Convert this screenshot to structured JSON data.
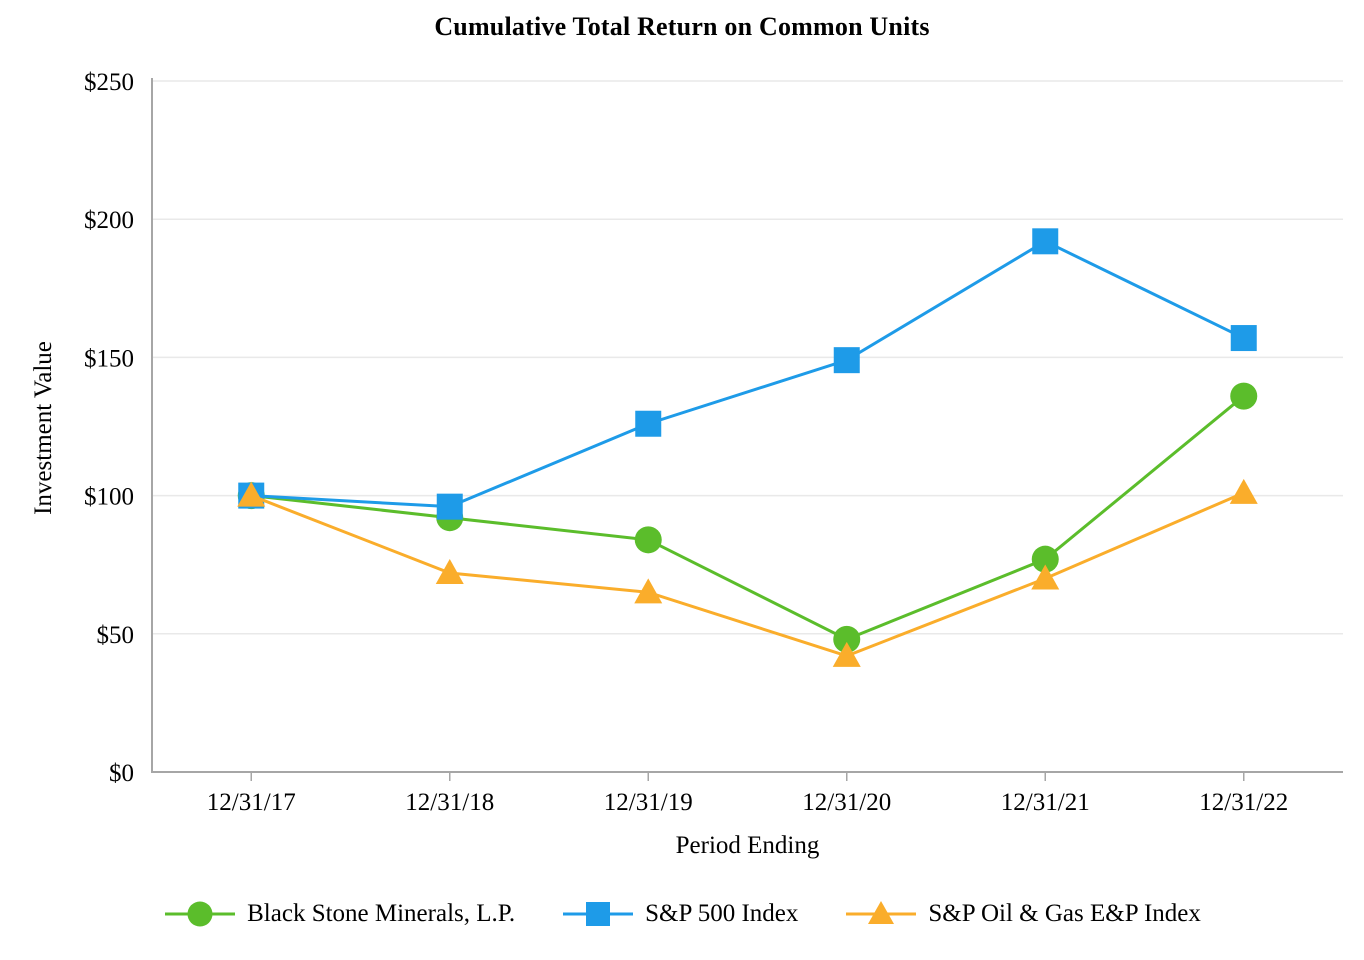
{
  "chart_data": {
    "type": "line",
    "title": "Cumulative Total Return on Common Units",
    "xlabel": "Period Ending",
    "ylabel": "Investment Value",
    "categories": [
      "12/31/17",
      "12/31/18",
      "12/31/19",
      "12/31/20",
      "12/31/21",
      "12/31/22"
    ],
    "series": [
      {
        "name": "Black Stone Minerals, L.P.",
        "marker": "circle",
        "color": "#5BBD2B",
        "values": [
          100,
          92,
          84,
          48,
          77,
          136
        ]
      },
      {
        "name": "S&P 500 Index",
        "marker": "square",
        "color": "#1E9BE8",
        "values": [
          100,
          96,
          126,
          149,
          192,
          157
        ]
      },
      {
        "name": "S&P Oil & Gas E&P Index",
        "marker": "triangle",
        "color": "#FAAD2B",
        "values": [
          100,
          72,
          65,
          42,
          70,
          101
        ]
      }
    ],
    "ylim": [
      0,
      250
    ],
    "ytick_step": 50,
    "ytick_labels": [
      "$0",
      "$50",
      "$100",
      "$150",
      "$200",
      "$250"
    ],
    "grid": "horizontal",
    "legend_position": "bottom"
  },
  "colors": {
    "axis": "#A6A6A6",
    "gridline": "#E9E9E9",
    "text": "#000000",
    "background": "#FFFFFF"
  }
}
